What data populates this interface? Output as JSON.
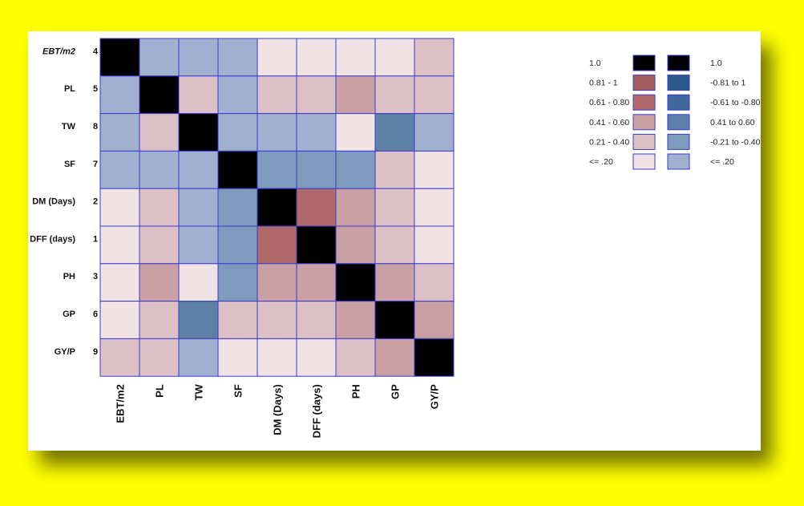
{
  "chart_data": {
    "type": "heatmap",
    "title": "",
    "row_labels": [
      "EBT/m2",
      "PL",
      "TW",
      "SF",
      "DM (Days)",
      "DFF (days)",
      "PH",
      "GP",
      "GY/P"
    ],
    "row_ranks": [
      "4",
      "5",
      "8",
      "7",
      "2",
      "1",
      "3",
      "6",
      "9"
    ],
    "col_labels": [
      "EBT/m2",
      "PL",
      "TW",
      "SF",
      "DM (Days)",
      "DFF (days)",
      "PH",
      "GP",
      "GY/P"
    ],
    "matrix_levels": [
      [
        "1.0",
        "-<=.20",
        "-<=.20",
        "-<=.20",
        "+<=.20",
        "+<=.20",
        "+<=.20",
        "+<=.20",
        "+0.21-0.40"
      ],
      [
        "-<=.20",
        "1.0",
        "+0.21-0.40",
        "-<=.20",
        "+0.21-0.40",
        "+0.21-0.40",
        "+0.41-0.60",
        "+0.21-0.40",
        "+0.21-0.40"
      ],
      [
        "-<=.20",
        "+0.21-0.40",
        "1.0",
        "-<=.20",
        "-<=.20",
        "-<=.20",
        "+<=.20",
        "-0.41-0.60",
        "-<=.20"
      ],
      [
        "-<=.20",
        "-<=.20",
        "-<=.20",
        "1.0",
        "-0.21-0.40",
        "-0.21-0.40",
        "-0.21-0.40",
        "+0.21-0.40",
        "+<=.20"
      ],
      [
        "+<=.20",
        "+0.21-0.40",
        "-<=.20",
        "-0.21-0.40",
        "1.0",
        "+0.61-0.80",
        "+0.41-0.60",
        "+0.21-0.40",
        "+<=.20"
      ],
      [
        "+<=.20",
        "+0.21-0.40",
        "-<=.20",
        "-0.21-0.40",
        "+0.61-0.80",
        "1.0",
        "+0.41-0.60",
        "+0.21-0.40",
        "+<=.20"
      ],
      [
        "+<=.20",
        "+0.41-0.60",
        "+<=.20",
        "-0.21-0.40",
        "+0.41-0.60",
        "+0.41-0.60",
        "1.0",
        "+0.41-0.60",
        "+0.21-0.40"
      ],
      [
        "+<=.20",
        "+0.21-0.40",
        "-0.41-0.60",
        "+0.21-0.40",
        "+0.21-0.40",
        "+0.21-0.40",
        "+0.41-0.60",
        "1.0",
        "+0.41-0.60"
      ],
      [
        "+0.21-0.40",
        "+0.21-0.40",
        "-<=.20",
        "+<=.20",
        "+<=.20",
        "+<=.20",
        "+0.21-0.40",
        "+0.41-0.60",
        "1.0"
      ]
    ],
    "level_colors": {
      "1.0": "#000000",
      "+0.81-1": "#a55c5c",
      "+0.61-0.80": "#b06a6a",
      "+0.41-0.60": "#c9a0a4",
      "+0.21-0.40": "#ddc0c5",
      "+<=.20": "#f0e2e5",
      "-0.81-1": "#2a5a8c",
      "-0.61-0.80": "#41689a",
      "-0.41-0.60": "#5f80a6",
      "-0.21-0.40": "#7e9abd",
      "-<=.20": "#9fb1cf"
    },
    "legend": {
      "placement": "top-right",
      "rows": [
        {
          "pos_label": "1.0",
          "pos_level": "1.0",
          "neg_level": "1.0",
          "neg_label": "1.0"
        },
        {
          "pos_label": "0.81 - 1",
          "pos_level": "+0.81-1",
          "neg_level": "-0.81-1",
          "neg_label": "-0.81 to 1"
        },
        {
          "pos_label": "0.61 - 0.80",
          "pos_level": "+0.61-0.80",
          "neg_level": "-0.61-0.80",
          "neg_label": "-0.61 to -0.80"
        },
        {
          "pos_label": "0.41 - 0.60",
          "pos_level": "+0.41-0.60",
          "neg_level": "-0.41-0.60",
          "neg_label": "0.41 to  0.60"
        },
        {
          "pos_label": "0.21 - 0.40",
          "pos_level": "+0.21-0.40",
          "neg_level": "-0.21-0.40",
          "neg_label": "-0.21 to -0.40"
        },
        {
          "pos_label": "<= .20",
          "pos_level": "+<=.20",
          "neg_level": "-<=.20",
          "neg_label": "<= .20"
        }
      ]
    },
    "grid_line_color": "#3a3ad0",
    "page_background": "#ffff00"
  }
}
